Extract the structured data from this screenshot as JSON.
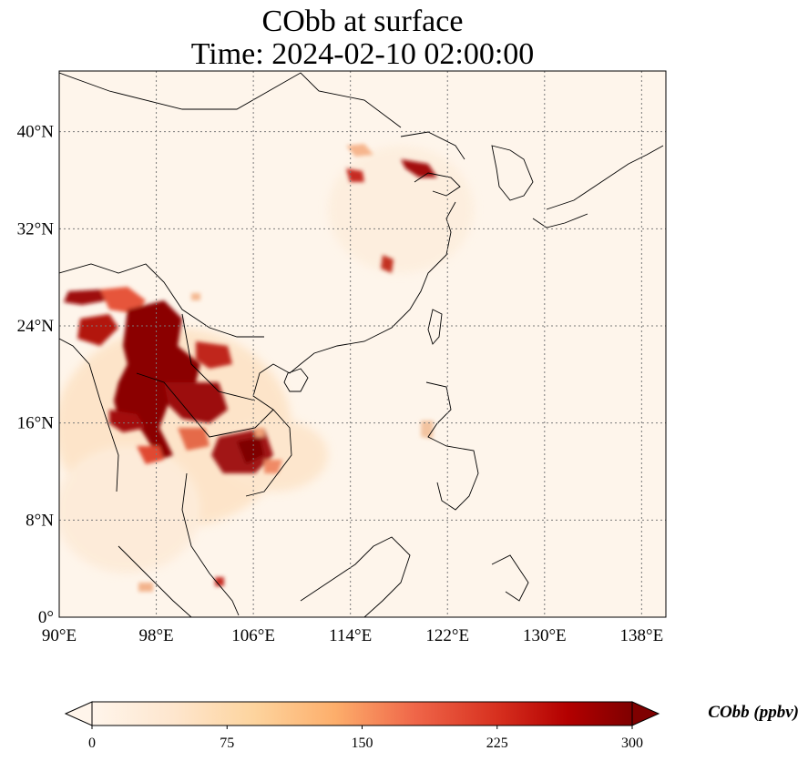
{
  "title": {
    "line1": "CObb at surface",
    "line2": "Time: 2024-02-10 02:00:00"
  },
  "map": {
    "extent": {
      "lon_min": 90,
      "lon_max": 140,
      "lat_min": 0,
      "lat_max": 45
    },
    "lon_ticks": [
      {
        "value": 90,
        "label": "90°E"
      },
      {
        "value": 98,
        "label": "98°E"
      },
      {
        "value": 106,
        "label": "106°E"
      },
      {
        "value": 114,
        "label": "114°E"
      },
      {
        "value": 122,
        "label": "122°E"
      },
      {
        "value": 130,
        "label": "130°E"
      },
      {
        "value": 138,
        "label": "138°E"
      }
    ],
    "lat_ticks": [
      {
        "value": 0,
        "label": "0°"
      },
      {
        "value": 8,
        "label": "8°N"
      },
      {
        "value": 16,
        "label": "16°N"
      },
      {
        "value": 24,
        "label": "24°N"
      },
      {
        "value": 32,
        "label": "32°N"
      },
      {
        "value": 40,
        "label": "40°N"
      }
    ],
    "background_color": "#fef5eb",
    "gridline_color": "#7a7a7a"
  },
  "colorbar": {
    "label": "CObb (ppbv)",
    "min": 0,
    "max": 300,
    "ticks": [
      {
        "value": 0,
        "label": "0"
      },
      {
        "value": 75,
        "label": "75"
      },
      {
        "value": 150,
        "label": "150"
      },
      {
        "value": 225,
        "label": "225"
      },
      {
        "value": 300,
        "label": "300"
      }
    ],
    "colormap": [
      "#fff5eb",
      "#fee6ce",
      "#fdd0a2",
      "#fdae6b",
      "#f16913",
      "#d94801",
      "#a63603",
      "#7f0000"
    ]
  },
  "hotspots": [
    {
      "lon": 98.5,
      "lat": 20.5,
      "value": 300
    },
    {
      "lon": 97.0,
      "lat": 17.0,
      "value": 300
    },
    {
      "lon": 100.0,
      "lat": 19.0,
      "value": 290
    },
    {
      "lon": 95.5,
      "lat": 24.0,
      "value": 300
    },
    {
      "lon": 91.0,
      "lat": 26.0,
      "value": 280
    },
    {
      "lon": 102.0,
      "lat": 18.0,
      "value": 240
    },
    {
      "lon": 104.5,
      "lat": 13.5,
      "value": 300
    },
    {
      "lon": 100.5,
      "lat": 14.5,
      "value": 220
    },
    {
      "lon": 99.5,
      "lat": 23.0,
      "value": 210
    },
    {
      "lon": 96.5,
      "lat": 25.5,
      "value": 240
    },
    {
      "lon": 117.0,
      "lat": 38.0,
      "value": 260
    },
    {
      "lon": 113.8,
      "lat": 36.8,
      "value": 220
    },
    {
      "lon": 116.5,
      "lat": 29.5,
      "value": 230
    },
    {
      "lon": 118.0,
      "lat": 16.5,
      "value": 110
    },
    {
      "lon": 104.0,
      "lat": 3.0,
      "value": 260
    },
    {
      "lon": 97.0,
      "lat": 2.5,
      "value": 120
    }
  ]
}
